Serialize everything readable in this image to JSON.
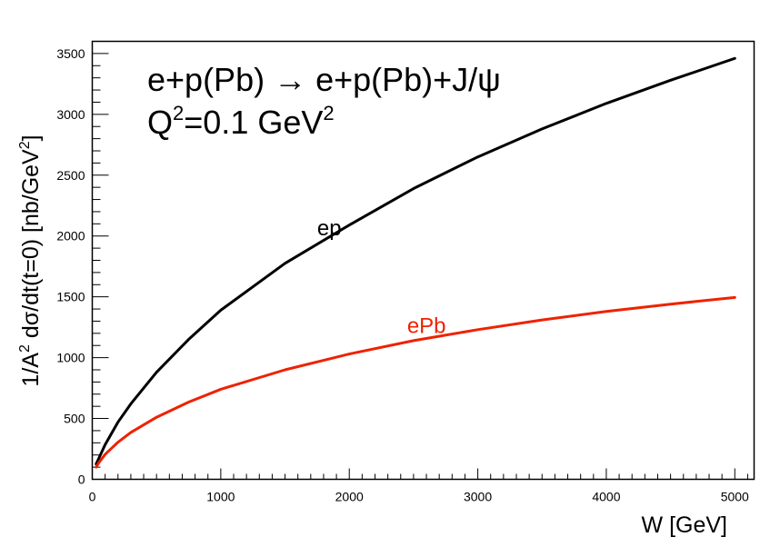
{
  "chart_data": {
    "type": "line",
    "title_line1": "e+p(Pb) → e+p(Pb)+J/ψ",
    "title_line2_main": "Q",
    "title_line2_sup": "2",
    "title_line2_rest": "=0.1 GeV",
    "title_line2_sup2": "2",
    "xlabel": "W [GeV]",
    "ylabel_part1": "1/A",
    "ylabel_sup1": "2",
    "ylabel_part2": " dσ/dt(t=0) [nb/GeV",
    "ylabel_sup2": "2",
    "ylabel_part3": "]",
    "xlim": [
      0,
      5150
    ],
    "ylim": [
      0,
      3600
    ],
    "xticks": [
      0,
      1000,
      2000,
      3000,
      4000,
      5000
    ],
    "yticks": [
      0,
      500,
      1000,
      1500,
      2000,
      2500,
      3000,
      3500
    ],
    "grid": false,
    "series": [
      {
        "name": "ep",
        "color": "#000000",
        "x": [
          30,
          50,
          100,
          200,
          300,
          500,
          750,
          1000,
          1500,
          2000,
          2500,
          3000,
          3500,
          4000,
          4500,
          5000
        ],
        "y": [
          125,
          170,
          285,
          470,
          620,
          880,
          1150,
          1390,
          1775,
          2090,
          2390,
          2650,
          2880,
          3090,
          3280,
          3460
        ]
      },
      {
        "name": "ePb",
        "color": "#ee2200",
        "x": [
          30,
          50,
          100,
          200,
          300,
          500,
          750,
          1000,
          1500,
          2000,
          2500,
          3000,
          3500,
          4000,
          4500,
          5000
        ],
        "y": [
          100,
          135,
          205,
          305,
          385,
          510,
          635,
          740,
          900,
          1030,
          1140,
          1230,
          1310,
          1380,
          1440,
          1495
        ]
      }
    ]
  }
}
